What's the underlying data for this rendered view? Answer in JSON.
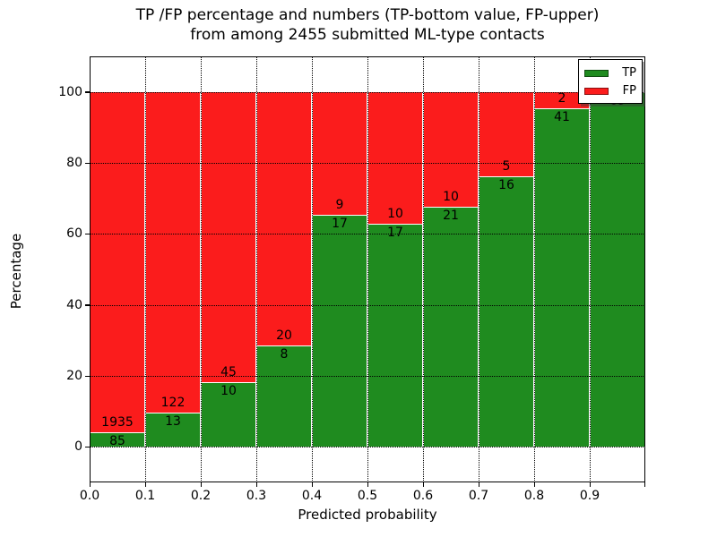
{
  "chart_data": {
    "type": "bar",
    "variant": "stacked-percentage",
    "title_line1": "TP /FP percentage and numbers (TP-bottom value, FP-upper)",
    "title_line2": "from among 2455 submitted ML-type contacts",
    "xlabel": "Predicted probability",
    "ylabel": "Percentage",
    "total_contacts": 2455,
    "xlim": [
      0.0,
      1.0
    ],
    "ylim": [
      -10,
      110
    ],
    "bin_width": 0.1,
    "categories": [
      "0.0-0.1",
      "0.1-0.2",
      "0.2-0.3",
      "0.3-0.4",
      "0.4-0.5",
      "0.5-0.6",
      "0.6-0.7",
      "0.7-0.8",
      "0.8-0.9",
      "0.9-1.0"
    ],
    "x_ticks": [
      0.0,
      0.1,
      0.2,
      0.3,
      0.4,
      0.5,
      0.6,
      0.7,
      0.8,
      0.9
    ],
    "x_tick_labels": [
      "0.0",
      "0.1",
      "0.2",
      "0.3",
      "0.4",
      "0.5",
      "0.6",
      "0.7",
      "0.8",
      "0.9"
    ],
    "y_ticks": [
      0,
      20,
      40,
      60,
      80,
      100
    ],
    "y_tick_labels": [
      "0",
      "20",
      "40",
      "60",
      "80",
      "100"
    ],
    "grid": "dotted",
    "series": [
      {
        "name": "TP",
        "color": "#1f8b1f",
        "values": [
          85,
          13,
          10,
          8,
          17,
          17,
          21,
          16,
          41,
          69
        ]
      },
      {
        "name": "FP",
        "color": "#fb1c1c",
        "values": [
          1935,
          122,
          45,
          20,
          9,
          10,
          10,
          5,
          2,
          0
        ]
      }
    ],
    "tp_percent": [
      4.21,
      9.63,
      18.18,
      28.57,
      65.38,
      62.96,
      67.74,
      76.19,
      95.35,
      100.0
    ],
    "legend": {
      "position": "upper right",
      "entries": [
        "TP",
        "FP"
      ]
    }
  }
}
